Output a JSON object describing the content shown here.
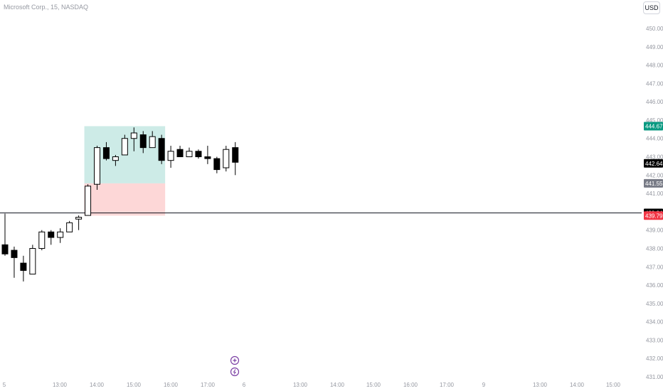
{
  "header": {
    "symbol_title": "Microsoft Corp., 15, NASDAQ",
    "currency_label": "USD"
  },
  "colors": {
    "up_candle_fill": "#ffffff",
    "down_candle_fill": "#000000",
    "profit_zone": "#cdebe7",
    "loss_zone": "#fdd7d7",
    "target_price_badge": "#089981",
    "stop_price_badge": "#f23645",
    "entry_price_badge": "#787b86",
    "axis_text": "#9598a1"
  },
  "icons": [
    "plus-circle-icon",
    "lightning-icon"
  ],
  "chart_data": {
    "type": "candlestick",
    "y_tick_labels": [
      "450.00",
      "449.00",
      "448.00",
      "447.00",
      "446.00",
      "445.00",
      "444.00",
      "443.00",
      "442.00",
      "441.00",
      "439.00",
      "438.00",
      "437.00",
      "436.00",
      "435.00",
      "434.00",
      "433.00",
      "432.00",
      "431.00"
    ],
    "x_tick_labels": [
      "5",
      "13:00",
      "14:00",
      "15:00",
      "16:00",
      "17:00",
      "6",
      "13:00",
      "14:00",
      "15:00",
      "16:00",
      "17:00",
      "9",
      "13:00",
      "14:00",
      "15:00"
    ],
    "ylim": [
      430.9,
      450.6
    ],
    "candles": [
      {
        "o": 438.2,
        "h": 439.9,
        "l": 437.6,
        "c": 437.7
      },
      {
        "o": 437.9,
        "h": 438.1,
        "l": 436.4,
        "c": 437.5
      },
      {
        "o": 437.2,
        "h": 437.6,
        "l": 436.2,
        "c": 436.8
      },
      {
        "o": 436.6,
        "h": 438.2,
        "l": 436.6,
        "c": 438.0
      },
      {
        "o": 438.0,
        "h": 439.0,
        "l": 437.9,
        "c": 438.9
      },
      {
        "o": 438.9,
        "h": 439.0,
        "l": 438.2,
        "c": 438.6
      },
      {
        "o": 438.6,
        "h": 439.1,
        "l": 438.3,
        "c": 438.9
      },
      {
        "o": 438.9,
        "h": 439.5,
        "l": 438.9,
        "c": 439.4
      },
      {
        "o": 439.6,
        "h": 439.8,
        "l": 439.0,
        "c": 439.7
      },
      {
        "o": 439.8,
        "h": 441.5,
        "l": 439.8,
        "c": 441.4
      },
      {
        "o": 441.5,
        "h": 443.6,
        "l": 441.2,
        "c": 443.5
      },
      {
        "o": 443.5,
        "h": 443.8,
        "l": 442.8,
        "c": 442.9
      },
      {
        "o": 442.8,
        "h": 443.1,
        "l": 442.5,
        "c": 443.0
      },
      {
        "o": 443.1,
        "h": 444.2,
        "l": 443.1,
        "c": 444.0
      },
      {
        "o": 444.0,
        "h": 444.6,
        "l": 443.3,
        "c": 444.3
      },
      {
        "o": 444.2,
        "h": 444.4,
        "l": 443.2,
        "c": 443.5
      },
      {
        "o": 443.5,
        "h": 444.4,
        "l": 443.5,
        "c": 444.1
      },
      {
        "o": 444.0,
        "h": 444.2,
        "l": 442.6,
        "c": 442.8
      },
      {
        "o": 442.8,
        "h": 443.6,
        "l": 442.4,
        "c": 443.3
      },
      {
        "o": 443.4,
        "h": 443.6,
        "l": 443.0,
        "c": 443.0
      },
      {
        "o": 443.0,
        "h": 443.5,
        "l": 443.0,
        "c": 443.3
      },
      {
        "o": 443.3,
        "h": 443.4,
        "l": 442.9,
        "c": 443.0
      },
      {
        "o": 443.0,
        "h": 443.6,
        "l": 442.6,
        "c": 442.9
      },
      {
        "o": 442.9,
        "h": 443.0,
        "l": 442.1,
        "c": 442.3
      },
      {
        "o": 442.4,
        "h": 443.6,
        "l": 442.2,
        "c": 443.4
      },
      {
        "o": 443.5,
        "h": 443.8,
        "l": 442.0,
        "c": 442.7
      }
    ],
    "position": {
      "target": 444.67,
      "entry": 441.55,
      "stop": 439.79,
      "start_index": 9,
      "end_index": 17
    },
    "horizontal_line": 439.94,
    "price_badges": [
      {
        "label": "444.67",
        "value": 444.67,
        "role": "target"
      },
      {
        "label": "442.64",
        "value": 442.64,
        "role": "last"
      },
      {
        "label": "441.55",
        "value": 441.55,
        "role": "entry"
      },
      {
        "label": "439.94",
        "value": 439.94,
        "role": "line"
      },
      {
        "label": "439.79",
        "value": 439.79,
        "role": "stop"
      }
    ],
    "grid": false
  }
}
